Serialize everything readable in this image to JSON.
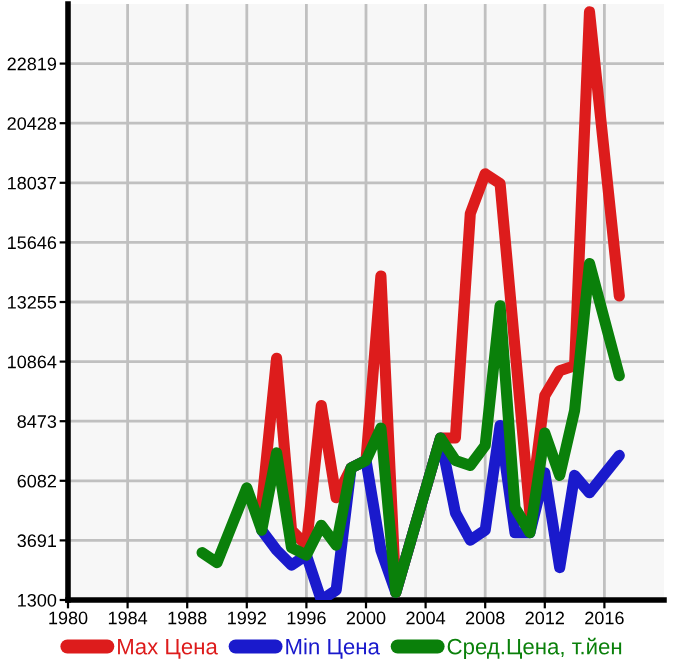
{
  "chart_data": {
    "type": "line",
    "xlim": [
      1980,
      2020
    ],
    "ylim": [
      1300,
      25210
    ],
    "xticks": [
      1980,
      1984,
      1988,
      1992,
      1996,
      2000,
      2004,
      2008,
      2012,
      2016
    ],
    "yticks": [
      1300,
      3691,
      6082,
      8473,
      10864,
      13255,
      15646,
      18037,
      20428,
      22819
    ],
    "grid": true,
    "legend": "bottom",
    "marker": "none",
    "line_style": "solid",
    "series": [
      {
        "name": "Max Цена",
        "color": "#dd1c1c",
        "x": [
          1993,
          1994,
          1995,
          1996,
          1997,
          1998,
          1999,
          2000,
          2001,
          2002,
          2005,
          2006,
          2007,
          2008,
          2009,
          2011,
          2012,
          2013,
          2014,
          2015,
          2017
        ],
        "values": [
          5100,
          11000,
          4100,
          3500,
          9100,
          5400,
          6600,
          6900,
          14300,
          1600,
          7800,
          7800,
          16800,
          18400,
          18000,
          4800,
          9500,
          10500,
          10700,
          24900,
          13500
        ]
      },
      {
        "name": "Min Цена",
        "color": "#1a1acc",
        "x": [
          1993,
          1994,
          1995,
          1996,
          1997,
          1998,
          1999,
          2000,
          2001,
          2002,
          2005,
          2006,
          2007,
          2008,
          2009,
          2010,
          2011,
          2012,
          2013,
          2014,
          2015,
          2017
        ],
        "values": [
          4100,
          3300,
          2700,
          3100,
          1300,
          1700,
          6600,
          6900,
          3300,
          1600,
          7800,
          4800,
          3700,
          4100,
          8300,
          4000,
          4000,
          6400,
          2600,
          6300,
          5600,
          7100
        ]
      },
      {
        "name": "Сред.Цена, т.йен",
        "color": "#0a800a",
        "x": [
          1989,
          1990,
          1992,
          1993,
          1994,
          1995,
          1996,
          1997,
          1998,
          1999,
          2000,
          2001,
          2002,
          2005,
          2006,
          2007,
          2008,
          2009,
          2010,
          2011,
          2012,
          2013,
          2014,
          2015,
          2017
        ],
        "values": [
          3200,
          2800,
          5800,
          4100,
          7200,
          3400,
          3100,
          4300,
          3500,
          6600,
          6900,
          8200,
          1600,
          7800,
          6900,
          6700,
          7500,
          13100,
          5000,
          4000,
          8000,
          6300,
          8900,
          14800,
          10300
        ]
      }
    ]
  }
}
